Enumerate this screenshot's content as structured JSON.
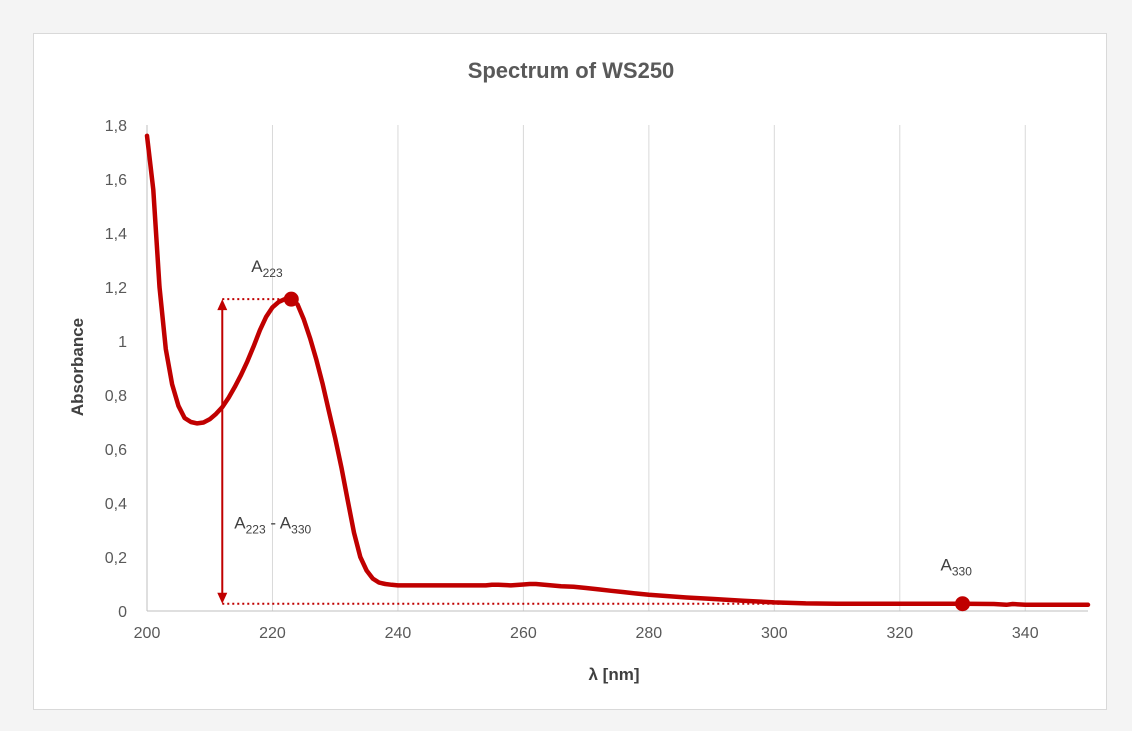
{
  "chart_data": {
    "type": "line",
    "title": "Spectrum of WS250",
    "xlabel": "λ [nm]",
    "ylabel": "Absorbance",
    "xlim": [
      200,
      350
    ],
    "ylim": [
      0,
      1.8
    ],
    "x_ticks": [
      "200",
      "220",
      "240",
      "260",
      "280",
      "300",
      "320",
      "340"
    ],
    "y_ticks": [
      "0",
      "0,2",
      "0,4",
      "0,6",
      "0,8",
      "1",
      "1,2",
      "1,4",
      "1,6",
      "1,8"
    ],
    "grid": "vertical",
    "line_color": "#c00000",
    "series": [
      {
        "x": [
          200,
          201,
          202,
          203,
          204,
          205,
          206,
          207,
          208,
          209,
          210,
          211,
          212,
          213,
          214,
          215,
          216,
          217,
          218,
          219,
          220,
          221,
          222,
          223,
          224,
          225,
          226,
          227,
          228,
          229,
          230,
          231,
          232,
          233,
          234,
          235,
          236,
          237,
          238,
          239,
          240,
          242,
          245,
          250,
          254,
          255,
          256,
          258,
          260,
          261,
          262,
          264,
          266,
          268,
          270,
          272,
          274,
          276,
          278,
          280,
          283,
          286,
          290,
          295,
          300,
          305,
          310,
          320,
          330,
          335,
          337,
          338,
          340,
          345,
          350
        ],
        "y": [
          1.76,
          1.56,
          1.2,
          0.97,
          0.84,
          0.76,
          0.715,
          0.7,
          0.695,
          0.698,
          0.71,
          0.73,
          0.755,
          0.79,
          0.83,
          0.875,
          0.925,
          0.98,
          1.04,
          1.09,
          1.125,
          1.145,
          1.155,
          1.155,
          1.135,
          1.08,
          1.01,
          0.93,
          0.84,
          0.74,
          0.64,
          0.53,
          0.41,
          0.29,
          0.2,
          0.15,
          0.12,
          0.105,
          0.1,
          0.097,
          0.095,
          0.095,
          0.095,
          0.095,
          0.095,
          0.097,
          0.097,
          0.095,
          0.098,
          0.1,
          0.1,
          0.096,
          0.092,
          0.09,
          0.085,
          0.08,
          0.075,
          0.07,
          0.065,
          0.06,
          0.055,
          0.05,
          0.045,
          0.038,
          0.032,
          0.028,
          0.027,
          0.027,
          0.027,
          0.026,
          0.023,
          0.026,
          0.023,
          0.023,
          0.023
        ]
      }
    ],
    "annotations": [
      {
        "name": "A223",
        "base": "A",
        "sub": "223",
        "x": 223,
        "y": 1.155
      },
      {
        "name": "A330",
        "base": "A",
        "sub": "330",
        "x": 330,
        "y": 0.027
      }
    ],
    "difference_label": {
      "base1": "A",
      "sub1": "223",
      "sep": " - ",
      "base2": "A",
      "sub2": "330"
    },
    "difference_x": 212
  }
}
